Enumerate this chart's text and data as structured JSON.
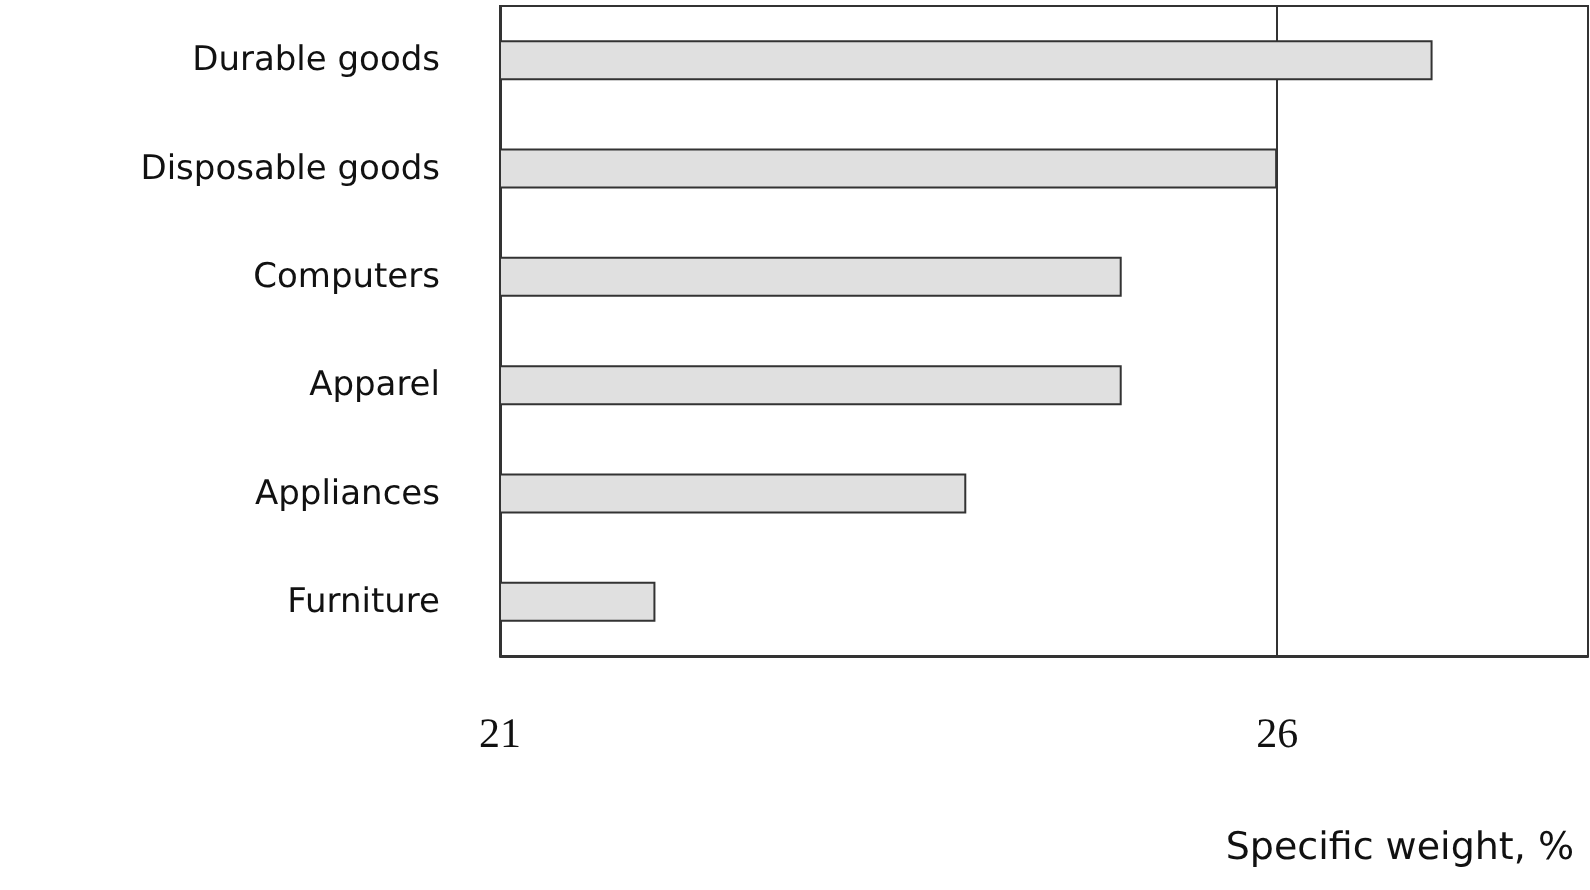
{
  "chart_data": {
    "type": "bar",
    "orientation": "horizontal",
    "xlabel": "Specific weight, %",
    "categories": [
      "Durable goods",
      "Disposable goods",
      "Computers",
      "Apparel",
      "Appliances",
      "Furniture"
    ],
    "values": [
      27,
      26,
      25,
      25,
      24,
      22
    ],
    "color": "#e0e0e0",
    "xlim": [
      21,
      28
    ],
    "xticks": [
      21,
      26
    ],
    "grid": "x"
  }
}
